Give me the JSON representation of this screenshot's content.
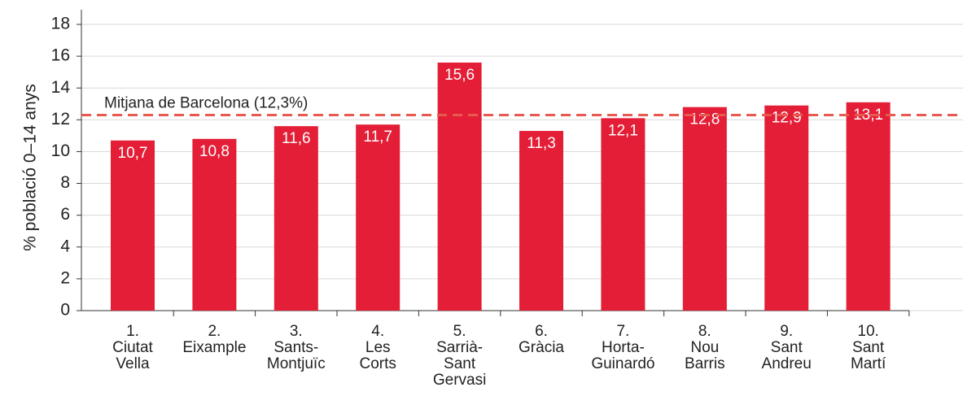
{
  "chart_data": {
    "type": "bar",
    "ylabel": "% població 0–14 anys",
    "categories": [
      [
        "1.",
        "Ciutat",
        "Vella"
      ],
      [
        "2.",
        "Eixample"
      ],
      [
        "3.",
        "Sants-",
        "Montjuïc"
      ],
      [
        "4.",
        "Les",
        "Corts"
      ],
      [
        "5.",
        "Sarrià-",
        "Sant",
        "Gervasi"
      ],
      [
        "6.",
        "Gràcia"
      ],
      [
        "7.",
        "Horta-",
        "Guinardó"
      ],
      [
        "8.",
        "Nou",
        "Barris"
      ],
      [
        "9.",
        "Sant",
        "Andreu"
      ],
      [
        "10.",
        "Sant",
        "Martí"
      ]
    ],
    "values": [
      10.7,
      10.8,
      11.6,
      11.7,
      15.6,
      11.3,
      12.1,
      12.8,
      12.9,
      13.1
    ],
    "value_labels": [
      "10,7",
      "10,8",
      "11,6",
      "11,7",
      "15,6",
      "11,3",
      "12,1",
      "12,8",
      "12,9",
      "13,1"
    ],
    "color": "#e31e36",
    "ylim": [
      0,
      18
    ],
    "yticks": [
      0,
      2,
      4,
      6,
      8,
      10,
      12,
      14,
      16,
      18
    ],
    "grid": true,
    "reference_line": {
      "value": 12.3,
      "label": "Mitjana de Barcelona (12,3%)",
      "color": "#e8594f"
    }
  }
}
